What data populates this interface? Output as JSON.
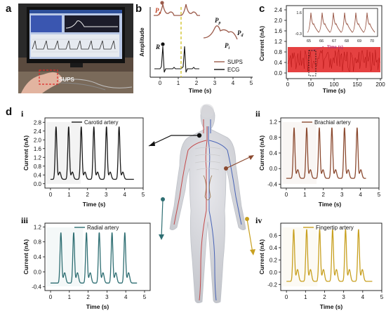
{
  "labels": {
    "a": "a",
    "b": "b",
    "c": "c",
    "d": "d",
    "i": "i",
    "ii": "ii",
    "iii": "iii",
    "iv": "iv"
  },
  "photo_a": {
    "sticker_text": "SUPS"
  },
  "panel_b": {
    "ylabel": "Amplitude",
    "xlabel": "Time (s)",
    "x_ticks": [
      "0",
      "1",
      "2",
      "3",
      "4",
      "5"
    ],
    "legend": [
      "SUPS",
      "ECG"
    ],
    "annotations": {
      "Pp": "P",
      "Pp_sub": "p",
      "R": "R",
      "Pp2": "P",
      "Pp2_sub": "p",
      "Pi": "P",
      "Pi_sub": "i",
      "Pd": "P",
      "Pd_sub": "d"
    },
    "colors": {
      "sups": "#9b5a4a",
      "ecg": "#111111",
      "marker": "#d0c020"
    }
  },
  "panel_c": {
    "ylabel": "Current (nA)",
    "xlabel": "Time (s)",
    "y_ticks": [
      "0.0",
      "0.4",
      "0.8",
      "1.2",
      "1.6",
      "2.0",
      "2.4"
    ],
    "x_ticks": [
      "0",
      "50",
      "100",
      "150",
      "200"
    ],
    "inset": {
      "y_ticks": [
        "1.6",
        "-0.3"
      ],
      "x_ticks": [
        "65",
        "66",
        "67",
        "68",
        "69",
        "70"
      ],
      "xlabel": "Time (s)"
    },
    "colors": {
      "signal": "#e02020",
      "box": "#b03070"
    }
  },
  "chart_data": [
    {
      "type": "line",
      "panel": "d-i",
      "title": "",
      "xlabel": "Time (s)",
      "ylabel": "Current (nA)",
      "series": [
        {
          "name": "Carotid artery",
          "color": "#1a1a1a"
        }
      ],
      "peak_times": [
        0.3,
        0.98,
        1.66,
        2.34,
        3.02,
        3.7
      ],
      "peak_value": 2.6,
      "baseline": 0.2,
      "notch_value": 0.8,
      "x_range": [
        0,
        4.5
      ],
      "xlim": [
        -0.3,
        5
      ],
      "ylim": [
        -0.2,
        3.0
      ],
      "x_ticks": [
        "0",
        "1",
        "2",
        "3",
        "4",
        "5"
      ],
      "y_ticks": [
        "0.0",
        "0.4",
        "0.8",
        "1.2",
        "1.6",
        "2.0",
        "2.4",
        "2.8"
      ]
    },
    {
      "type": "line",
      "panel": "d-ii",
      "title": "",
      "xlabel": "Time (s)",
      "ylabel": "Current (nA)",
      "series": [
        {
          "name": "Brachial artery",
          "color": "#8b4a30"
        }
      ],
      "peak_times": [
        0.42,
        1.1,
        1.78,
        2.46,
        3.14,
        3.82
      ],
      "peak_value": 1.05,
      "baseline": -0.25,
      "notch_value": 0.15,
      "x_range": [
        0,
        4.3
      ],
      "xlim": [
        -0.3,
        5
      ],
      "ylim": [
        -0.5,
        1.3
      ],
      "x_ticks": [
        "0",
        "1",
        "2",
        "3",
        "4",
        "5"
      ],
      "y_ticks": [
        "-0.4",
        "0.0",
        "0.4",
        "0.8",
        "1.2"
      ]
    },
    {
      "type": "line",
      "panel": "d-iii",
      "title": "",
      "xlabel": "Time (s)",
      "ylabel": "Current (nA)",
      "series": [
        {
          "name": "Radial artery",
          "color": "#2e6e72"
        }
      ],
      "peak_times": [
        0.55,
        1.23,
        1.91,
        2.59,
        3.27,
        3.95
      ],
      "peak_value": 1.05,
      "baseline": -0.3,
      "notch_value": 0.2,
      "x_range": [
        0,
        4.6
      ],
      "xlim": [
        -0.3,
        5.3
      ],
      "ylim": [
        -0.5,
        1.3
      ],
      "x_ticks": [
        "0",
        "1",
        "2",
        "3",
        "4",
        "5"
      ],
      "y_ticks": [
        "-0.4",
        "0.0",
        "0.4",
        "0.8",
        "1.2"
      ]
    },
    {
      "type": "line",
      "panel": "d-iv",
      "title": "",
      "xlabel": "Time (s)",
      "ylabel": "Current (nA)",
      "series": [
        {
          "name": "Fingertip artery",
          "color": "#c8a020"
        }
      ],
      "peak_times": [
        0.38,
        1.06,
        1.74,
        2.42,
        3.1,
        3.78
      ],
      "peak_value": 0.7,
      "baseline": -0.15,
      "notch_value": 0.2,
      "x_range": [
        0,
        4.5
      ],
      "xlim": [
        -0.3,
        5
      ],
      "ylim": [
        -0.3,
        0.8
      ],
      "x_ticks": [
        "0",
        "1",
        "2",
        "3",
        "4",
        "5"
      ],
      "y_ticks": [
        "-0.2",
        "0.0",
        "0.2",
        "0.4",
        "0.6"
      ]
    }
  ]
}
